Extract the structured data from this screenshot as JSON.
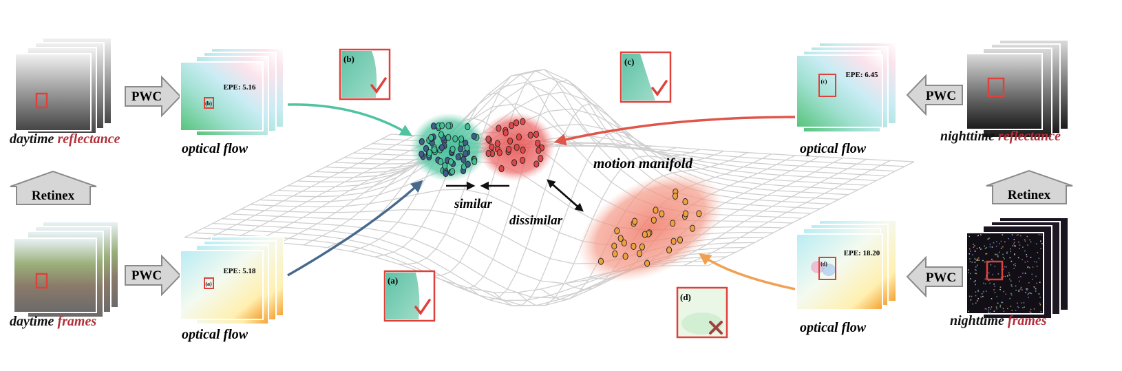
{
  "left": {
    "top_input": {
      "word1": "daytime",
      "word2": "reflectance"
    },
    "bottom_input": {
      "word1": "daytime",
      "word2": "frames"
    },
    "retinex_label": "Retinex",
    "pwc_top": "PWC",
    "pwc_bottom": "PWC",
    "flow_top": {
      "label": "optical flow",
      "epe": "EPE: 5.16",
      "patch_tag": "(b)"
    },
    "flow_bottom": {
      "label": "optical flow",
      "epe": "EPE: 5.18",
      "patch_tag": "(a)"
    }
  },
  "right": {
    "top_input": {
      "word1": "nighttime",
      "word2": "reflectance"
    },
    "bottom_input": {
      "word1": "nighttime",
      "word2": "frames"
    },
    "retinex_label": "Retinex",
    "pwc_top": "PWC",
    "pwc_bottom": "PWC",
    "flow_top": {
      "label": "optical flow",
      "epe": "EPE: 6.45",
      "patch_tag": "(c)"
    },
    "flow_bottom": {
      "label": "optical flow",
      "epe": "EPE: 18.20",
      "patch_tag": "(d)"
    }
  },
  "patches": {
    "a": "(a)",
    "b": "(b)",
    "c": "(c)",
    "d": "(d)"
  },
  "manifold": {
    "title": "motion manifold",
    "similar": "similar",
    "dissimilar": "dissimilar"
  },
  "colors": {
    "accent_red": "#e0403a",
    "word_red": "#b0303a",
    "teal": "#4fc2a0",
    "blue_arrow": "#46698c",
    "orange": "#f0a050",
    "red_arrow": "#e0554a"
  }
}
